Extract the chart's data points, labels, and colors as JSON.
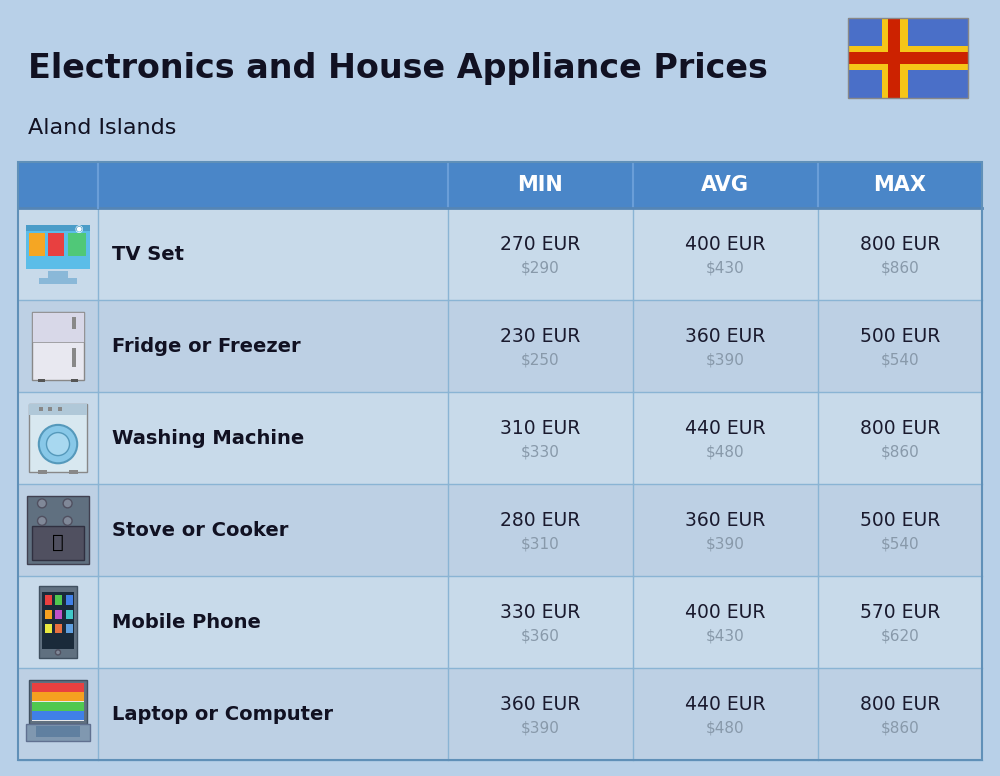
{
  "title": "Electronics and House Appliance Prices",
  "subtitle": "Aland Islands",
  "bg_color": "#b8d0e8",
  "header_color": "#4a86c8",
  "header_text_color": "#ffffff",
  "row_colors": [
    "#c8daea",
    "#bdd0e4"
  ],
  "eur_color": "#1a1a2e",
  "usd_color": "#8899aa",
  "divider_color": "#8ab4d4",
  "columns": [
    "MIN",
    "AVG",
    "MAX"
  ],
  "items": [
    {
      "name": "TV Set",
      "min_eur": "270 EUR",
      "min_usd": "$290",
      "avg_eur": "400 EUR",
      "avg_usd": "$430",
      "max_eur": "800 EUR",
      "max_usd": "$860"
    },
    {
      "name": "Fridge or Freezer",
      "min_eur": "230 EUR",
      "min_usd": "$250",
      "avg_eur": "360 EUR",
      "avg_usd": "$390",
      "max_eur": "500 EUR",
      "max_usd": "$540"
    },
    {
      "name": "Washing Machine",
      "min_eur": "310 EUR",
      "min_usd": "$330",
      "avg_eur": "440 EUR",
      "avg_usd": "$480",
      "max_eur": "800 EUR",
      "max_usd": "$860"
    },
    {
      "name": "Stove or Cooker",
      "min_eur": "280 EUR",
      "min_usd": "$310",
      "avg_eur": "360 EUR",
      "avg_usd": "$390",
      "max_eur": "500 EUR",
      "max_usd": "$540"
    },
    {
      "name": "Mobile Phone",
      "min_eur": "330 EUR",
      "min_usd": "$360",
      "avg_eur": "400 EUR",
      "avg_usd": "$430",
      "max_eur": "570 EUR",
      "max_usd": "$620"
    },
    {
      "name": "Laptop or Computer",
      "min_eur": "360 EUR",
      "min_usd": "$390",
      "avg_eur": "440 EUR",
      "avg_usd": "$480",
      "max_eur": "800 EUR",
      "max_usd": "$860"
    }
  ]
}
